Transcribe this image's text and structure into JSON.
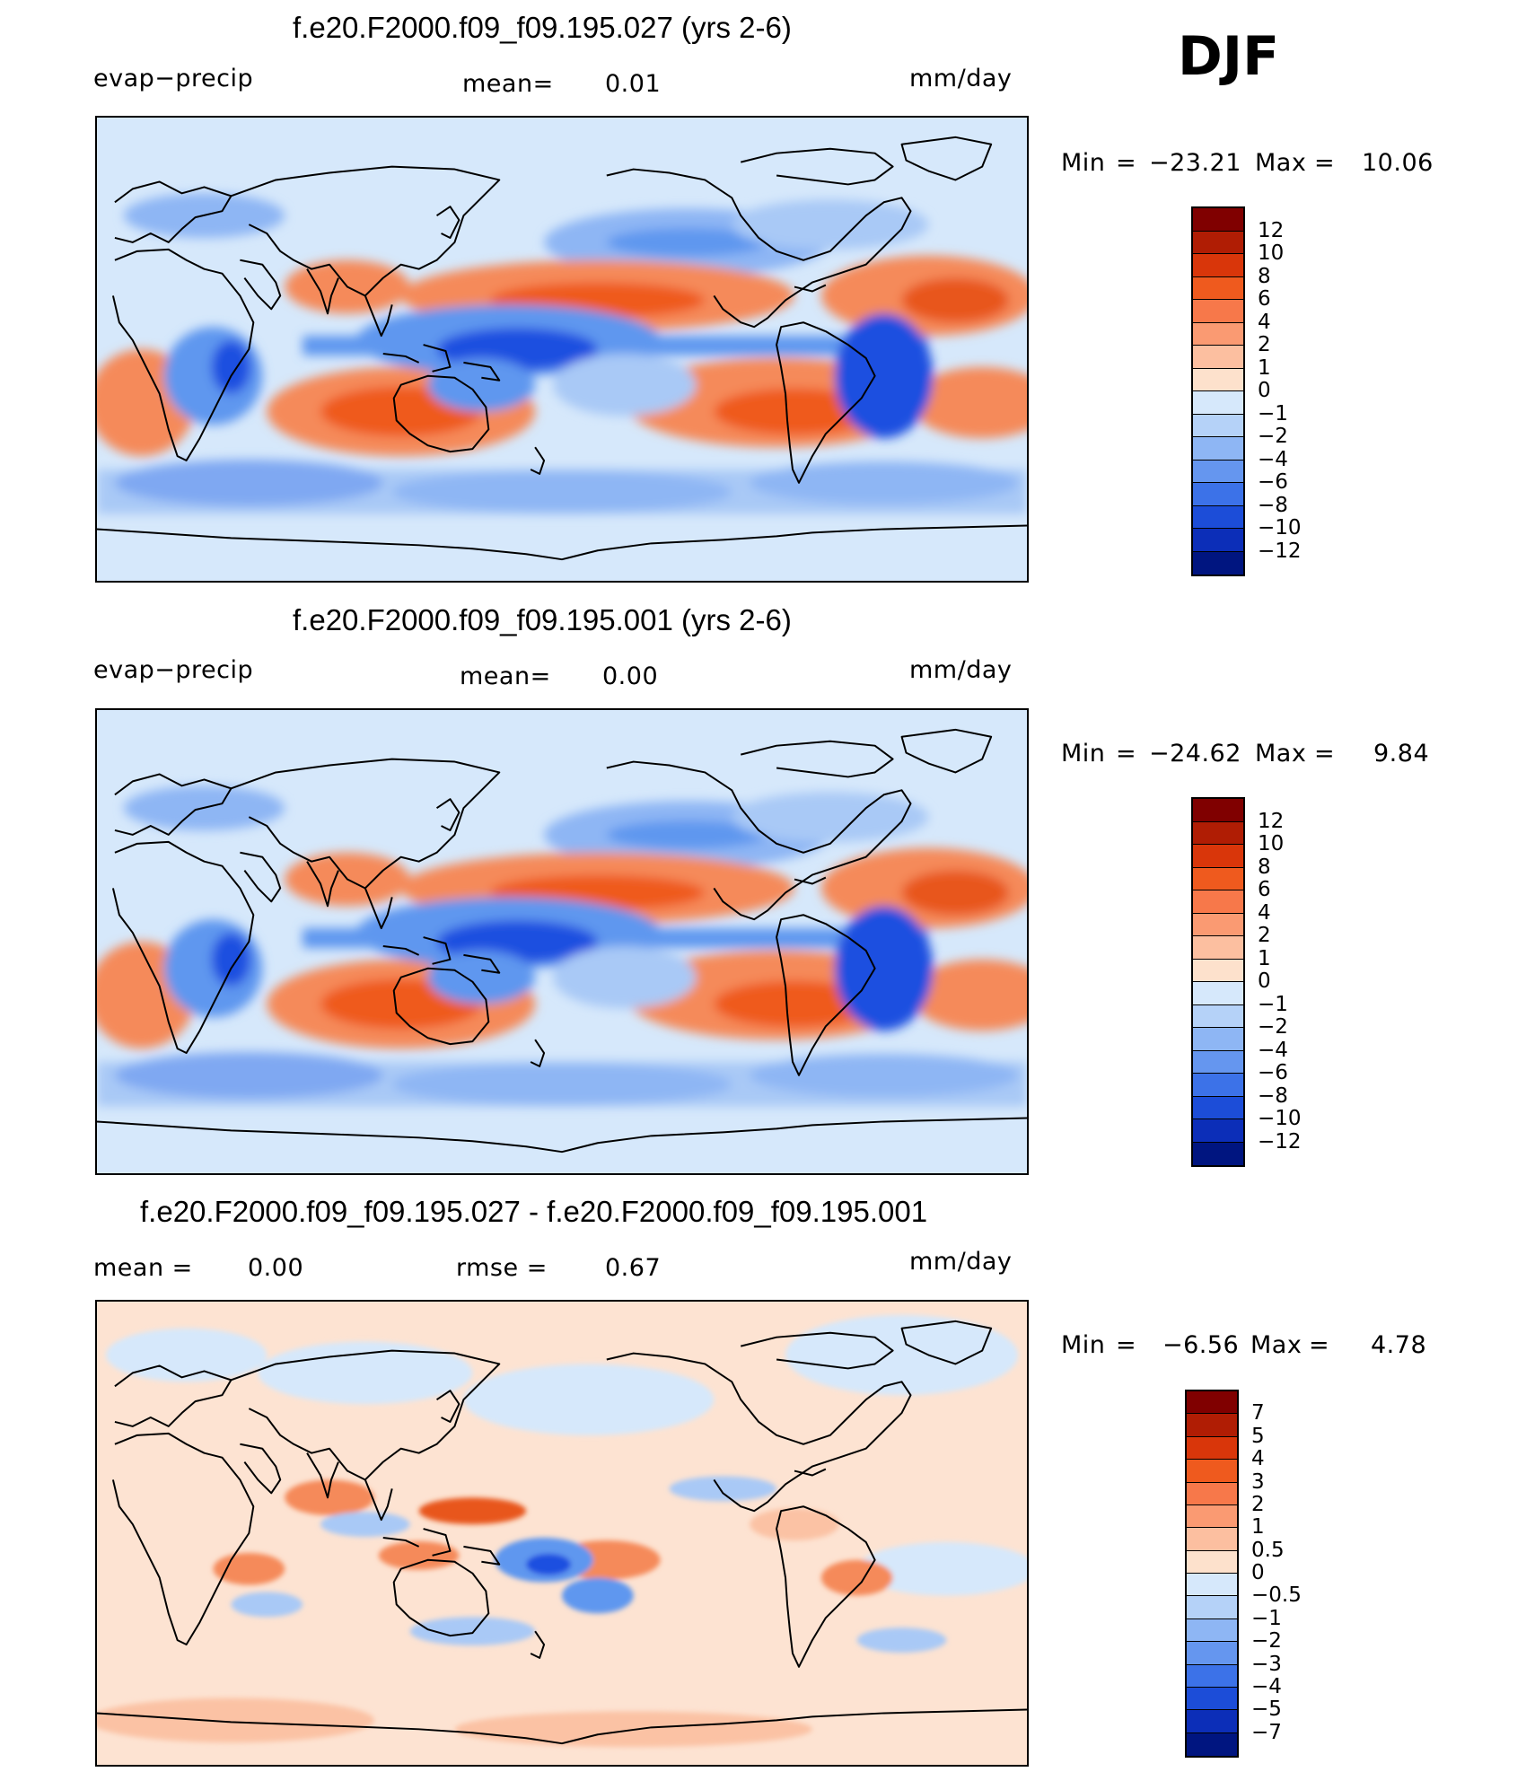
{
  "season": "DJF",
  "colors": {
    "ocean": "#d6e8fb",
    "coast": "#000000",
    "pos_strong": "#e8561e",
    "pos_mid": "#f58a5a",
    "pos_light": "#fbc2a4",
    "neg_light": "#a9c9f6",
    "neg_mid": "#5f97ef",
    "neg_strong": "#1f4fe0"
  },
  "panels": [
    {
      "title": "f.e20.F2000.f09_f09.195.027 (yrs 2-6)",
      "left_label": "evap−precip",
      "stat_label": "mean=",
      "stat_value": "0.01",
      "units": "mm/day",
      "min_max": {
        "min_label": "Min",
        "eq": "=",
        "min_value": "−23.21",
        "max_label": "Max",
        "max_value": "10.06"
      },
      "colorbar": {
        "labels": [
          "12",
          "10",
          "8",
          "6",
          "4",
          "2",
          "1",
          "0",
          "−1",
          "−2",
          "−4",
          "−6",
          "−8",
          "−10",
          "−12"
        ],
        "colors": [
          "#800000",
          "#b01d04",
          "#d9360a",
          "#ef5a1e",
          "#f7784a",
          "#fa9a72",
          "#fcbfa0",
          "#fde1cc",
          "#d6e8fb",
          "#b5d2f8",
          "#8eb6f4",
          "#6596ef",
          "#3c72e8",
          "#1c4dd8",
          "#0c2eb8",
          "#001580"
        ]
      }
    },
    {
      "title": "f.e20.F2000.f09_f09.195.001 (yrs 2-6)",
      "left_label": "evap−precip",
      "stat_label": "mean=",
      "stat_value": "0.00",
      "units": "mm/day",
      "min_max": {
        "min_label": "Min",
        "eq": "=",
        "min_value": "−24.62",
        "max_label": "Max",
        "max_value": "9.84"
      },
      "colorbar": {
        "labels": [
          "12",
          "10",
          "8",
          "6",
          "4",
          "2",
          "1",
          "0",
          "−1",
          "−2",
          "−4",
          "−6",
          "−8",
          "−10",
          "−12"
        ],
        "colors": [
          "#800000",
          "#b01d04",
          "#d9360a",
          "#ef5a1e",
          "#f7784a",
          "#fa9a72",
          "#fcbfa0",
          "#fde1cc",
          "#d6e8fb",
          "#b5d2f8",
          "#8eb6f4",
          "#6596ef",
          "#3c72e8",
          "#1c4dd8",
          "#0c2eb8",
          "#001580"
        ]
      }
    },
    {
      "title": "f.e20.F2000.f09_f09.195.027 - f.e20.F2000.f09_f09.195.001",
      "left_label": "mean  =",
      "left_value": "0.00",
      "stat_label": "rmse  =",
      "stat_value": "0.67",
      "units": "mm/day",
      "min_max": {
        "min_label": "Min",
        "eq": "=",
        "min_value": "−6.56",
        "max_label": "Max",
        "max_value": "4.78"
      },
      "colorbar": {
        "labels": [
          "7",
          "5",
          "4",
          "3",
          "2",
          "1",
          "0.5",
          "0",
          "−0.5",
          "−1",
          "−2",
          "−3",
          "−4",
          "−5",
          "−7"
        ],
        "colors": [
          "#800000",
          "#b01d04",
          "#d9360a",
          "#ef5a1e",
          "#f7784a",
          "#fa9a72",
          "#fcbfa0",
          "#fde1cc",
          "#d6e8fb",
          "#b5d2f8",
          "#8eb6f4",
          "#6596ef",
          "#3c72e8",
          "#1c4dd8",
          "#0c2eb8",
          "#001580"
        ]
      }
    }
  ]
}
